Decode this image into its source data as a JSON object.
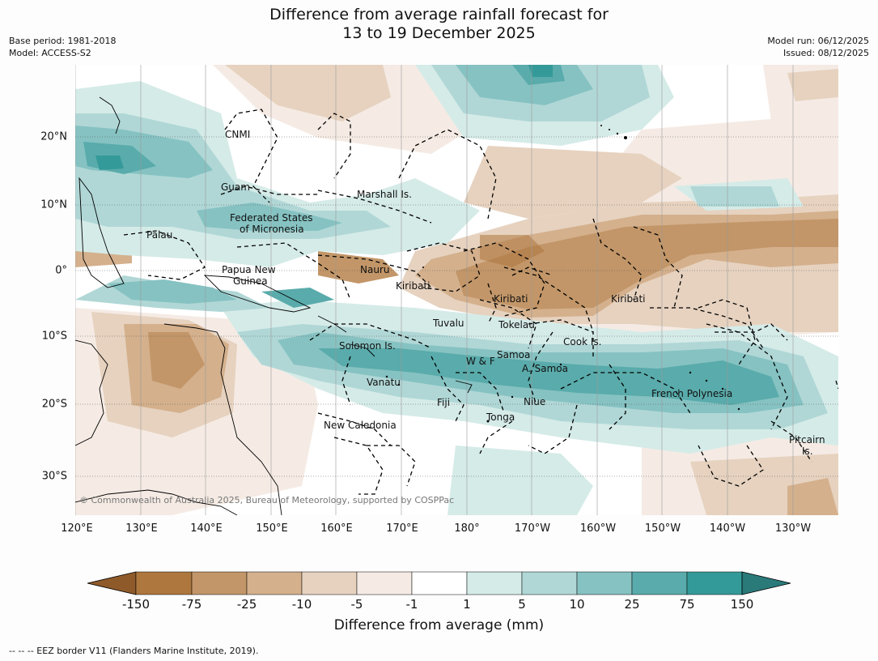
{
  "title_line1": "Difference from average rainfall forecast for",
  "title_line2": "13 to 19 December 2025",
  "base_period": "Base period: 1981-2018",
  "model": "Model: ACCESS-S2",
  "model_run": "Model run: 06/12/2025",
  "issued": "Issued: 08/12/2025",
  "copyright": "© Commonwealth of Australia 2025, Bureau of Meteorology, supported by COSPPac",
  "lon_labels": [
    "120°E",
    "130°E",
    "140°E",
    "150°E",
    "160°E",
    "170°E",
    "180°",
    "170°W",
    "160°W",
    "150°W",
    "140°W",
    "130°W"
  ],
  "lat_labels": [
    "20°N",
    "10°N",
    "0°",
    "10°S",
    "20°S",
    "30°S"
  ],
  "places": {
    "cnmi": "CNMI",
    "guam": "Guam",
    "marshall": "Marshall Is.",
    "fsm1": "Federated States",
    "fsm2": "of Micronesia",
    "palau": "Palau",
    "png1": "Papua New",
    "png2": "Guinea",
    "nauru": "Nauru",
    "kiribati_w": "Kiribati",
    "kiribati_c": "Kiribati",
    "kiribati_e": "Kiribati",
    "tuvalu": "Tuvalu",
    "tokelau": "Tokelau",
    "solomon": "Solomon Is.",
    "cook": "Cook Is.",
    "wf": "W & F",
    "samoa": "Samoa",
    "asamoa": "A. Samoa",
    "vanuatu": "Vanatu",
    "fiji": "Fiji",
    "niue": "Niue",
    "tonga": "Tonga",
    "frpoly": "French Polynesia",
    "newcal": "New Caledonia",
    "pitcairn1": "Pitcairn",
    "pitcairn2": "Is."
  },
  "colorbar": {
    "title": "Difference from average (mm)",
    "ticks": [
      "-150",
      "-75",
      "-25",
      "-10",
      "-5",
      "-1",
      "1",
      "5",
      "10",
      "25",
      "75",
      "150"
    ],
    "colors": {
      "lt_m150": "#8f5a2a",
      "m150_m75": "#ad773e",
      "m75_m25": "#c29668",
      "m25_m10": "#d4b08d",
      "m10_m5": "#e6d2bf",
      "m5_m1": "#f5ebe4",
      "m1_1": "#ffffff",
      "1_5": "#d5ebe8",
      "5_10": "#b0d7d6",
      "10_25": "#86c2c2",
      "25_75": "#5aabab",
      "75_150": "#349a99",
      "gt_150": "#2b7a7a"
    }
  },
  "footnote": "--  --  -- EEZ border V11 (Flanders Marine Institute, 2019)."
}
